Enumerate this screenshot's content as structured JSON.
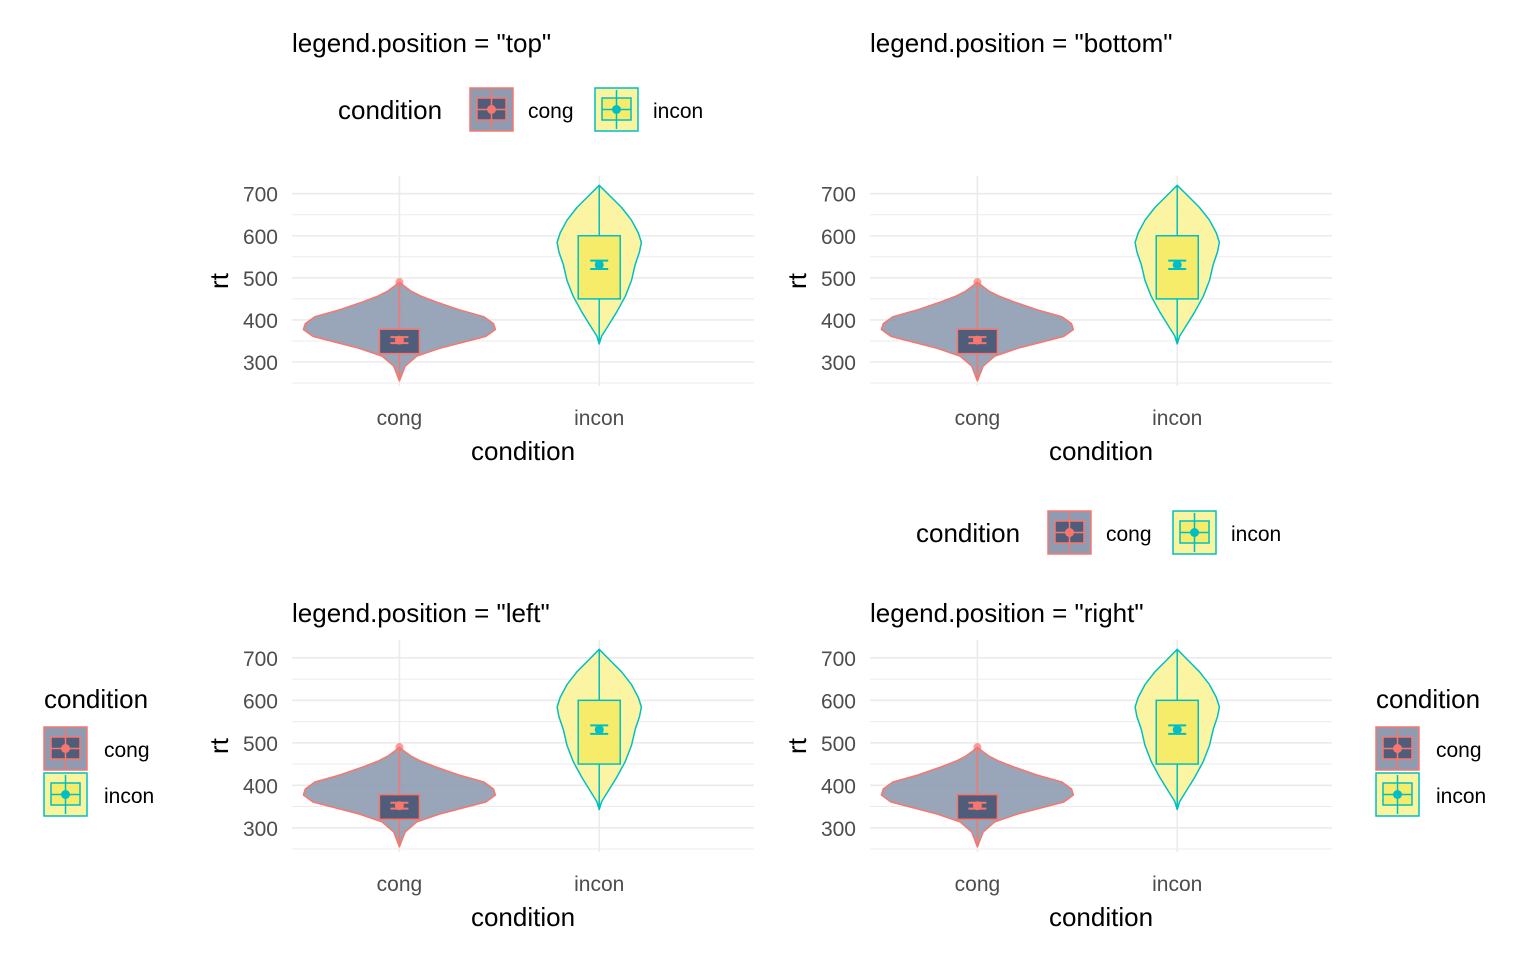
{
  "colors": {
    "background": "#ffffff",
    "grid": "#ebebeb",
    "cong_fill": "#8e9bb0",
    "cong_box_fill": "#4f5d7a",
    "cong_line": "#f8766d",
    "incon_fill": "#fbf49e",
    "incon_box_fill": "#f7ec6a",
    "incon_line": "#00bfc4"
  },
  "chart_data": [
    {
      "type": "violin",
      "title": "legend.position = \"top\"",
      "xlabel": "condition",
      "ylabel": "rt",
      "categories": [
        "cong",
        "incon"
      ],
      "yticks": [
        300,
        400,
        500,
        600,
        700
      ],
      "ylim": [
        243,
        742
      ],
      "legend": {
        "title": "condition",
        "position": "top",
        "entries": [
          "cong",
          "incon"
        ]
      },
      "series": [
        {
          "name": "cong",
          "min": 255,
          "q1": 320,
          "median": 345,
          "q3": 378,
          "max": 490,
          "mean": 352,
          "mean_ci": [
            345,
            359
          ]
        },
        {
          "name": "incon",
          "min": 343,
          "q1": 450,
          "median": 525,
          "q3": 600,
          "max": 720,
          "mean": 531,
          "mean_ci": [
            521,
            541
          ]
        }
      ]
    },
    {
      "type": "violin",
      "title": "legend.position = \"bottom\"",
      "xlabel": "condition",
      "ylabel": "rt",
      "categories": [
        "cong",
        "incon"
      ],
      "yticks": [
        300,
        400,
        500,
        600,
        700
      ],
      "ylim": [
        243,
        742
      ],
      "legend": {
        "title": "condition",
        "position": "bottom",
        "entries": [
          "cong",
          "incon"
        ]
      },
      "series": [
        {
          "name": "cong",
          "min": 255,
          "q1": 320,
          "median": 345,
          "q3": 378,
          "max": 490,
          "mean": 352,
          "mean_ci": [
            345,
            359
          ]
        },
        {
          "name": "incon",
          "min": 343,
          "q1": 450,
          "median": 525,
          "q3": 600,
          "max": 720,
          "mean": 531,
          "mean_ci": [
            521,
            541
          ]
        }
      ]
    },
    {
      "type": "violin",
      "title": "legend.position = \"left\"",
      "xlabel": "condition",
      "ylabel": "rt",
      "categories": [
        "cong",
        "incon"
      ],
      "yticks": [
        300,
        400,
        500,
        600,
        700
      ],
      "ylim": [
        243,
        742
      ],
      "legend": {
        "title": "condition",
        "position": "left",
        "entries": [
          "cong",
          "incon"
        ]
      },
      "series": [
        {
          "name": "cong",
          "min": 255,
          "q1": 320,
          "median": 345,
          "q3": 378,
          "max": 490,
          "mean": 352,
          "mean_ci": [
            345,
            359
          ]
        },
        {
          "name": "incon",
          "min": 343,
          "q1": 450,
          "median": 525,
          "q3": 600,
          "max": 720,
          "mean": 531,
          "mean_ci": [
            521,
            541
          ]
        }
      ]
    },
    {
      "type": "violin",
      "title": "legend.position = \"right\"",
      "xlabel": "condition",
      "ylabel": "rt",
      "categories": [
        "cong",
        "incon"
      ],
      "yticks": [
        300,
        400,
        500,
        600,
        700
      ],
      "ylim": [
        243,
        742
      ],
      "legend": {
        "title": "condition",
        "position": "right",
        "entries": [
          "cong",
          "incon"
        ]
      },
      "series": [
        {
          "name": "cong",
          "min": 255,
          "q1": 320,
          "median": 345,
          "q3": 378,
          "max": 490,
          "mean": 352,
          "mean_ci": [
            345,
            359
          ]
        },
        {
          "name": "incon",
          "min": 343,
          "q1": 450,
          "median": 525,
          "q3": 600,
          "max": 720,
          "mean": 531,
          "mean_ci": [
            521,
            541
          ]
        }
      ]
    }
  ]
}
